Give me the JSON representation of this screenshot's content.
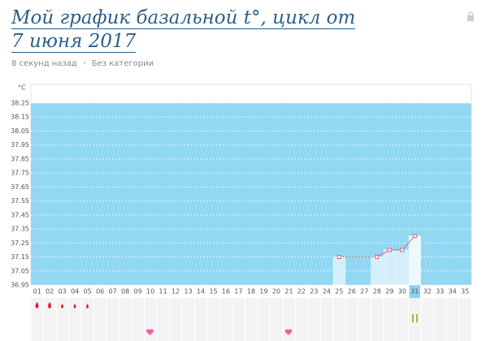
{
  "header": {
    "title": "Мой график базальной t°, цикл от 7 июня 2017",
    "time": "8 секунд назад",
    "category": "Без категории"
  },
  "chart_data": {
    "type": "line",
    "y_label": "°C",
    "categories": [
      "01",
      "02",
      "03",
      "04",
      "05",
      "06",
      "07",
      "08",
      "09",
      "10",
      "11",
      "12",
      "13",
      "14",
      "15",
      "16",
      "17",
      "18",
      "19",
      "20",
      "21",
      "22",
      "23",
      "24",
      "25",
      "26",
      "27",
      "28",
      "29",
      "30",
      "31",
      "32",
      "33",
      "34",
      "35"
    ],
    "values": [
      null,
      null,
      null,
      null,
      null,
      null,
      null,
      null,
      null,
      null,
      null,
      null,
      null,
      null,
      null,
      null,
      null,
      null,
      null,
      null,
      null,
      null,
      null,
      null,
      37.15,
      null,
      null,
      37.15,
      37.2,
      37.2,
      37.3,
      null,
      null,
      null,
      null
    ],
    "color": "#e0607e",
    "bar_color": "#d4effb",
    "background": "#93d8f3",
    "ylim": [
      36.95,
      38.25
    ],
    "yticks": [
      36.95,
      37.05,
      37.15,
      37.25,
      37.35,
      37.45,
      37.55,
      37.65,
      37.75,
      37.85,
      37.95,
      38.05,
      38.15,
      38.25
    ],
    "grid": true
  }
}
